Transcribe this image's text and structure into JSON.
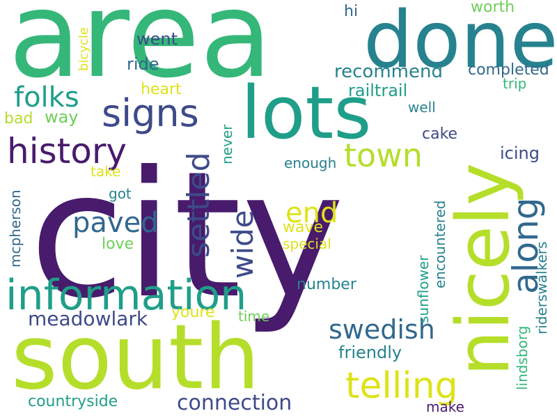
{
  "palette": {
    "purple_dark": "#481b6d",
    "indigo": "#3e4a89",
    "blue": "#31688e",
    "teal": "#26828e",
    "green_teal": "#1f9e89",
    "green": "#35b779",
    "lime": "#6ece58",
    "yellow_green": "#b5de2b",
    "yellow": "#dde318"
  },
  "words": [
    {
      "text": "city"
    },
    {
      "text": "area"
    },
    {
      "text": "south"
    },
    {
      "text": "done"
    },
    {
      "text": "lots"
    },
    {
      "text": "nicely"
    },
    {
      "text": "information"
    },
    {
      "text": "history"
    },
    {
      "text": "signs"
    },
    {
      "text": "telling"
    },
    {
      "text": "along"
    },
    {
      "text": "town"
    },
    {
      "text": "folks"
    },
    {
      "text": "swedish"
    },
    {
      "text": "paved"
    },
    {
      "text": "settled"
    },
    {
      "text": "end"
    },
    {
      "text": "wide"
    },
    {
      "text": "meadowlark"
    },
    {
      "text": "connection"
    },
    {
      "text": "recommend"
    },
    {
      "text": "completed"
    },
    {
      "text": "railtrail"
    },
    {
      "text": "went"
    },
    {
      "text": "ride"
    },
    {
      "text": "heart"
    },
    {
      "text": "way"
    },
    {
      "text": "bad"
    },
    {
      "text": "hi"
    },
    {
      "text": "worth"
    },
    {
      "text": "trip"
    },
    {
      "text": "well"
    },
    {
      "text": "cake"
    },
    {
      "text": "icing"
    },
    {
      "text": "enough"
    },
    {
      "text": "take"
    },
    {
      "text": "got"
    },
    {
      "text": "love"
    },
    {
      "text": "wave"
    },
    {
      "text": "special"
    },
    {
      "text": "number"
    },
    {
      "text": "youre"
    },
    {
      "text": "time"
    },
    {
      "text": "friendly"
    },
    {
      "text": "countryside"
    },
    {
      "text": "make"
    },
    {
      "text": "bicycle"
    },
    {
      "text": "never"
    },
    {
      "text": "mcpherson"
    },
    {
      "text": "encountered"
    },
    {
      "text": "sunflower"
    },
    {
      "text": "lindsborg"
    },
    {
      "text": "riderswalkers"
    }
  ]
}
